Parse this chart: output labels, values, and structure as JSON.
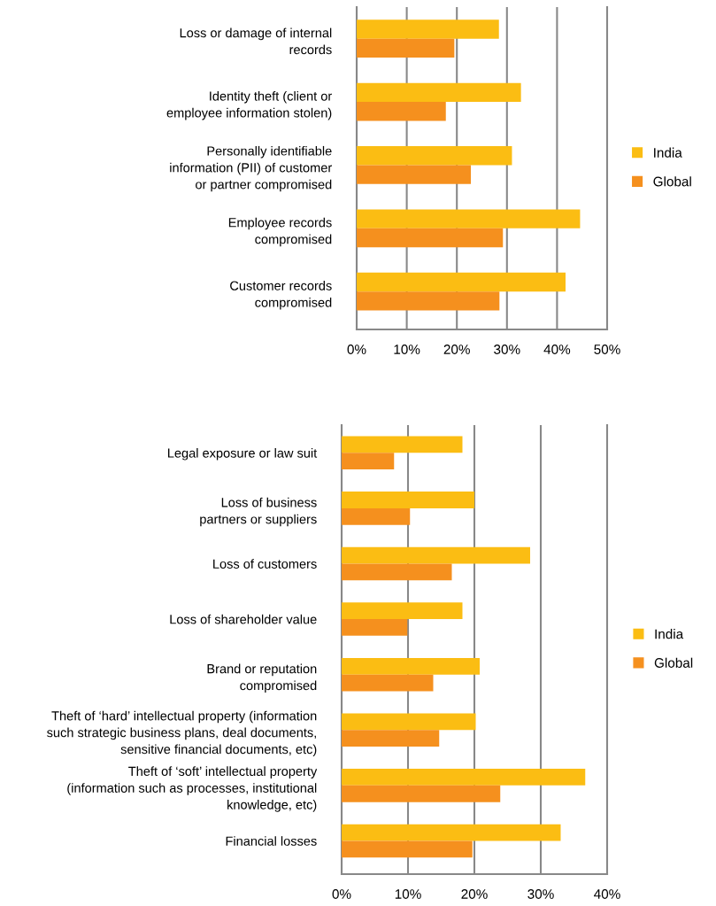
{
  "chart_data": [
    {
      "type": "bar",
      "orientation": "horizontal",
      "categories": [
        "Loss or damage of internal\nrecords",
        "Identity theft (client or\nemployee information stolen)",
        "Personally identifiable\ninformation (PII) of customer\nor partner compromised",
        "Employee records\ncompromised",
        "Customer records\ncompromised"
      ],
      "series": [
        {
          "name": "India",
          "color": "#fbbd13",
          "values": [
            28.4,
            32.8,
            31.0,
            44.6,
            41.7
          ]
        },
        {
          "name": "Global",
          "color": "#f5901e",
          "values": [
            19.5,
            17.8,
            22.8,
            29.2,
            28.5
          ]
        }
      ],
      "xlim": [
        0,
        50
      ],
      "xticks": [
        {
          "value": 0,
          "label": "0%"
        },
        {
          "value": 10,
          "label": "10%"
        },
        {
          "value": 20,
          "label": "20%"
        },
        {
          "value": 30,
          "label": "30%"
        },
        {
          "value": 40,
          "label": "40%"
        },
        {
          "value": 50,
          "label": "50%"
        }
      ],
      "grid": "x",
      "legend": "right"
    },
    {
      "type": "bar",
      "orientation": "horizontal",
      "categories": [
        "Legal exposure or law suit",
        "Loss of business\npartners or suppliers",
        "Loss of customers",
        "Loss of shareholder value",
        "Brand or reputation\ncompromised",
        "Theft of ‘hard’ intellectual property (information\nsuch strategic business plans, deal documents,\nsensitive financial documents, etc)",
        "Theft of ‘soft’ intellectual property\n(information such as processes, institutional\nknowledge, etc)",
        "Financial losses"
      ],
      "series": [
        {
          "name": "India",
          "color": "#fbbd13",
          "values": [
            18.2,
            20.0,
            28.4,
            18.2,
            20.8,
            20.2,
            36.7,
            33.0
          ]
        },
        {
          "name": "Global",
          "color": "#f5901e",
          "values": [
            7.9,
            10.3,
            16.6,
            9.9,
            13.8,
            14.7,
            23.9,
            19.7
          ]
        }
      ],
      "xlim": [
        0,
        40
      ],
      "xticks": [
        {
          "value": 0,
          "label": "0%"
        },
        {
          "value": 10,
          "label": "10%"
        },
        {
          "value": 20,
          "label": "20%"
        },
        {
          "value": 30,
          "label": "30%"
        },
        {
          "value": 40,
          "label": "40%"
        }
      ],
      "grid": "x",
      "legend": "right"
    }
  ]
}
